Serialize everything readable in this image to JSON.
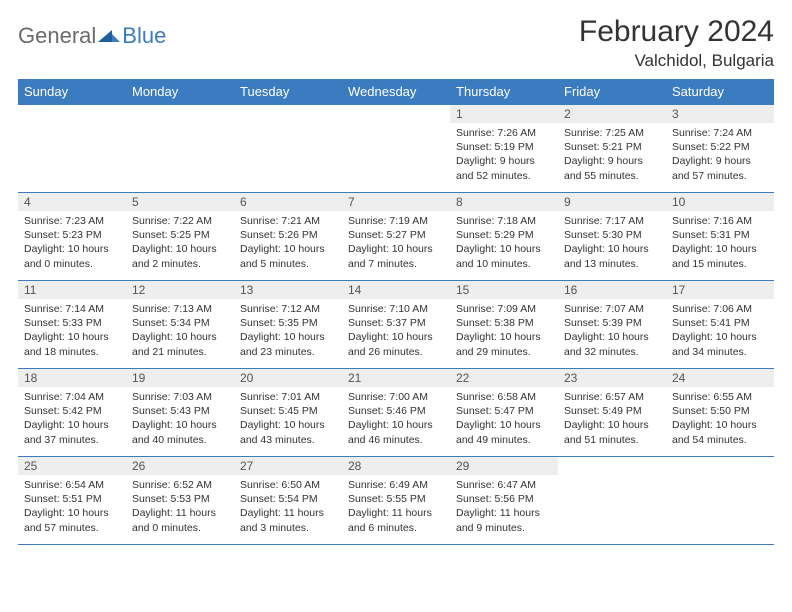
{
  "logo": {
    "part1": "General",
    "part2": "Blue"
  },
  "title": "February 2024",
  "location": "Valchidol, Bulgaria",
  "colors": {
    "header_bg": "#3b7bbf",
    "header_text": "#ffffff",
    "daynum_bg": "#eeeeee",
    "border": "#3b7bbf",
    "logo_gray": "#6b6b6b",
    "logo_blue": "#3b7bbf"
  },
  "weekdays": [
    "Sunday",
    "Monday",
    "Tuesday",
    "Wednesday",
    "Thursday",
    "Friday",
    "Saturday"
  ],
  "weeks": [
    [
      {
        "n": "",
        "sr": "",
        "ss": "",
        "dl": ""
      },
      {
        "n": "",
        "sr": "",
        "ss": "",
        "dl": ""
      },
      {
        "n": "",
        "sr": "",
        "ss": "",
        "dl": ""
      },
      {
        "n": "",
        "sr": "",
        "ss": "",
        "dl": ""
      },
      {
        "n": "1",
        "sr": "Sunrise: 7:26 AM",
        "ss": "Sunset: 5:19 PM",
        "dl": "Daylight: 9 hours and 52 minutes."
      },
      {
        "n": "2",
        "sr": "Sunrise: 7:25 AM",
        "ss": "Sunset: 5:21 PM",
        "dl": "Daylight: 9 hours and 55 minutes."
      },
      {
        "n": "3",
        "sr": "Sunrise: 7:24 AM",
        "ss": "Sunset: 5:22 PM",
        "dl": "Daylight: 9 hours and 57 minutes."
      }
    ],
    [
      {
        "n": "4",
        "sr": "Sunrise: 7:23 AM",
        "ss": "Sunset: 5:23 PM",
        "dl": "Daylight: 10 hours and 0 minutes."
      },
      {
        "n": "5",
        "sr": "Sunrise: 7:22 AM",
        "ss": "Sunset: 5:25 PM",
        "dl": "Daylight: 10 hours and 2 minutes."
      },
      {
        "n": "6",
        "sr": "Sunrise: 7:21 AM",
        "ss": "Sunset: 5:26 PM",
        "dl": "Daylight: 10 hours and 5 minutes."
      },
      {
        "n": "7",
        "sr": "Sunrise: 7:19 AM",
        "ss": "Sunset: 5:27 PM",
        "dl": "Daylight: 10 hours and 7 minutes."
      },
      {
        "n": "8",
        "sr": "Sunrise: 7:18 AM",
        "ss": "Sunset: 5:29 PM",
        "dl": "Daylight: 10 hours and 10 minutes."
      },
      {
        "n": "9",
        "sr": "Sunrise: 7:17 AM",
        "ss": "Sunset: 5:30 PM",
        "dl": "Daylight: 10 hours and 13 minutes."
      },
      {
        "n": "10",
        "sr": "Sunrise: 7:16 AM",
        "ss": "Sunset: 5:31 PM",
        "dl": "Daylight: 10 hours and 15 minutes."
      }
    ],
    [
      {
        "n": "11",
        "sr": "Sunrise: 7:14 AM",
        "ss": "Sunset: 5:33 PM",
        "dl": "Daylight: 10 hours and 18 minutes."
      },
      {
        "n": "12",
        "sr": "Sunrise: 7:13 AM",
        "ss": "Sunset: 5:34 PM",
        "dl": "Daylight: 10 hours and 21 minutes."
      },
      {
        "n": "13",
        "sr": "Sunrise: 7:12 AM",
        "ss": "Sunset: 5:35 PM",
        "dl": "Daylight: 10 hours and 23 minutes."
      },
      {
        "n": "14",
        "sr": "Sunrise: 7:10 AM",
        "ss": "Sunset: 5:37 PM",
        "dl": "Daylight: 10 hours and 26 minutes."
      },
      {
        "n": "15",
        "sr": "Sunrise: 7:09 AM",
        "ss": "Sunset: 5:38 PM",
        "dl": "Daylight: 10 hours and 29 minutes."
      },
      {
        "n": "16",
        "sr": "Sunrise: 7:07 AM",
        "ss": "Sunset: 5:39 PM",
        "dl": "Daylight: 10 hours and 32 minutes."
      },
      {
        "n": "17",
        "sr": "Sunrise: 7:06 AM",
        "ss": "Sunset: 5:41 PM",
        "dl": "Daylight: 10 hours and 34 minutes."
      }
    ],
    [
      {
        "n": "18",
        "sr": "Sunrise: 7:04 AM",
        "ss": "Sunset: 5:42 PM",
        "dl": "Daylight: 10 hours and 37 minutes."
      },
      {
        "n": "19",
        "sr": "Sunrise: 7:03 AM",
        "ss": "Sunset: 5:43 PM",
        "dl": "Daylight: 10 hours and 40 minutes."
      },
      {
        "n": "20",
        "sr": "Sunrise: 7:01 AM",
        "ss": "Sunset: 5:45 PM",
        "dl": "Daylight: 10 hours and 43 minutes."
      },
      {
        "n": "21",
        "sr": "Sunrise: 7:00 AM",
        "ss": "Sunset: 5:46 PM",
        "dl": "Daylight: 10 hours and 46 minutes."
      },
      {
        "n": "22",
        "sr": "Sunrise: 6:58 AM",
        "ss": "Sunset: 5:47 PM",
        "dl": "Daylight: 10 hours and 49 minutes."
      },
      {
        "n": "23",
        "sr": "Sunrise: 6:57 AM",
        "ss": "Sunset: 5:49 PM",
        "dl": "Daylight: 10 hours and 51 minutes."
      },
      {
        "n": "24",
        "sr": "Sunrise: 6:55 AM",
        "ss": "Sunset: 5:50 PM",
        "dl": "Daylight: 10 hours and 54 minutes."
      }
    ],
    [
      {
        "n": "25",
        "sr": "Sunrise: 6:54 AM",
        "ss": "Sunset: 5:51 PM",
        "dl": "Daylight: 10 hours and 57 minutes."
      },
      {
        "n": "26",
        "sr": "Sunrise: 6:52 AM",
        "ss": "Sunset: 5:53 PM",
        "dl": "Daylight: 11 hours and 0 minutes."
      },
      {
        "n": "27",
        "sr": "Sunrise: 6:50 AM",
        "ss": "Sunset: 5:54 PM",
        "dl": "Daylight: 11 hours and 3 minutes."
      },
      {
        "n": "28",
        "sr": "Sunrise: 6:49 AM",
        "ss": "Sunset: 5:55 PM",
        "dl": "Daylight: 11 hours and 6 minutes."
      },
      {
        "n": "29",
        "sr": "Sunrise: 6:47 AM",
        "ss": "Sunset: 5:56 PM",
        "dl": "Daylight: 11 hours and 9 minutes."
      },
      {
        "n": "",
        "sr": "",
        "ss": "",
        "dl": ""
      },
      {
        "n": "",
        "sr": "",
        "ss": "",
        "dl": ""
      }
    ]
  ]
}
